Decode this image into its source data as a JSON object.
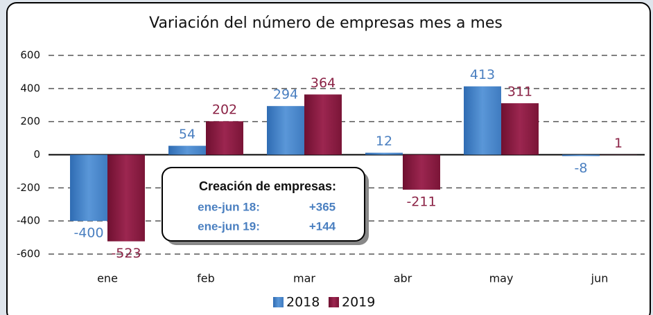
{
  "chart_data": {
    "type": "bar",
    "title": "Variación del número de empresas mes a mes",
    "categories": [
      "ene",
      "feb",
      "mar",
      "abr",
      "may",
      "jun"
    ],
    "series": [
      {
        "name": "2018",
        "color": "#4a86c8",
        "label_color": "#4a7fc0",
        "values": [
          -400,
          54,
          294,
          12,
          413,
          -8
        ]
      },
      {
        "name": "2019",
        "color": "#8b1a42",
        "label_color": "#8b2346",
        "values": [
          -523,
          202,
          364,
          -211,
          311,
          1
        ]
      }
    ],
    "ylim": [
      -600,
      600
    ],
    "yticks": [
      -600,
      -400,
      -200,
      0,
      200,
      400,
      600
    ],
    "grid": true,
    "legend": "bottom",
    "annotation": {
      "title": "Creación de empresas:",
      "rows": [
        [
          "ene-jun 18:",
          "+365"
        ],
        [
          "ene-jun 19:",
          "+144"
        ]
      ]
    }
  }
}
